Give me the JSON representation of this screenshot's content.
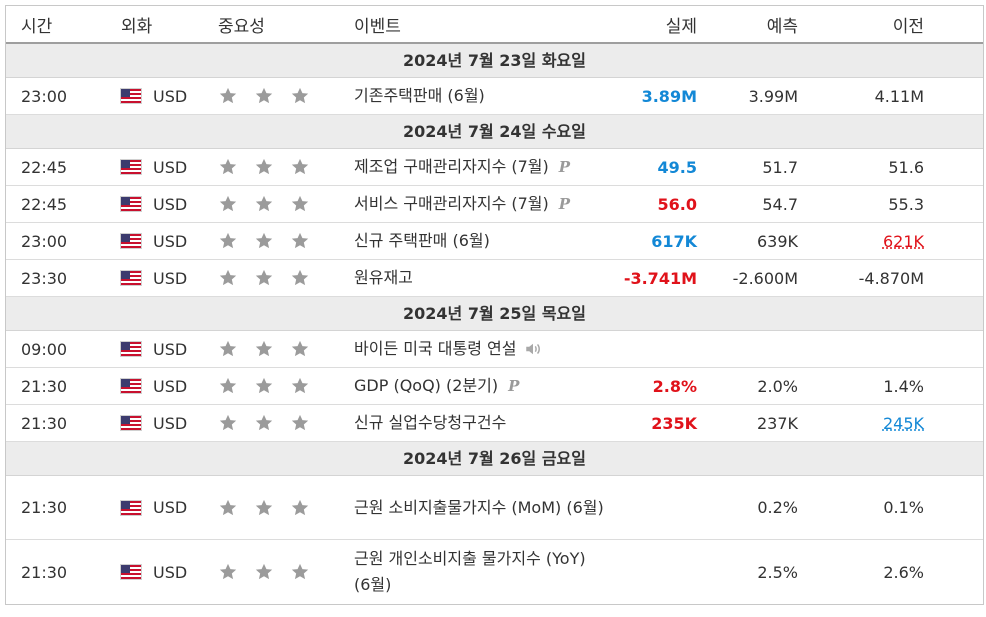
{
  "headers": {
    "time": "시간",
    "currency": "외화",
    "importance": "중요성",
    "event": "이벤트",
    "actual": "실제",
    "forecast": "예측",
    "previous": "이전"
  },
  "colors": {
    "better": "#1388d6",
    "worse": "#e0121a",
    "star": "#9b9b9b",
    "date_row_bg": "#ececec"
  },
  "days": [
    {
      "date": "2024년 7월 23일 화요일",
      "events": [
        {
          "time": "23:00",
          "currency": "USD",
          "importance": 3,
          "event": "기존주택판매 (6월)",
          "badge": "",
          "actual": "3.89M",
          "actual_class": "blue",
          "forecast": "3.99M",
          "previous": "4.11M",
          "previous_class": ""
        }
      ]
    },
    {
      "date": "2024년 7월 24일 수요일",
      "events": [
        {
          "time": "22:45",
          "currency": "USD",
          "importance": 3,
          "event": "제조업 구매관리자지수 (7월)",
          "badge": "P",
          "actual": "49.5",
          "actual_class": "blue",
          "forecast": "51.7",
          "previous": "51.6",
          "previous_class": ""
        },
        {
          "time": "22:45",
          "currency": "USD",
          "importance": 3,
          "event": "서비스 구매관리자지수 (7월)",
          "badge": "P",
          "actual": "56.0",
          "actual_class": "red",
          "forecast": "54.7",
          "previous": "55.3",
          "previous_class": ""
        },
        {
          "time": "23:00",
          "currency": "USD",
          "importance": 3,
          "event": "신규 주택판매 (6월)",
          "badge": "",
          "actual": "617K",
          "actual_class": "blue",
          "forecast": "639K",
          "previous": "621K",
          "previous_class": "prev-red"
        },
        {
          "time": "23:30",
          "currency": "USD",
          "importance": 3,
          "event": "원유재고",
          "badge": "",
          "actual": "-3.741M",
          "actual_class": "red",
          "forecast": "-2.600M",
          "previous": "-4.870M",
          "previous_class": ""
        }
      ]
    },
    {
      "date": "2024년 7월 25일 목요일",
      "events": [
        {
          "time": "09:00",
          "currency": "USD",
          "importance": 3,
          "event": "바이든 미국 대통령 연설",
          "badge": "speaker-icon",
          "actual": "",
          "actual_class": "",
          "forecast": "",
          "previous": "",
          "previous_class": ""
        },
        {
          "time": "21:30",
          "currency": "USD",
          "importance": 3,
          "event": "GDP (QoQ) (2분기)",
          "badge": "P",
          "actual": "2.8%",
          "actual_class": "red",
          "forecast": "2.0%",
          "previous": "1.4%",
          "previous_class": ""
        },
        {
          "time": "21:30",
          "currency": "USD",
          "importance": 3,
          "event": "신규 실업수당청구건수",
          "badge": "",
          "actual": "235K",
          "actual_class": "red",
          "forecast": "237K",
          "previous": "245K",
          "previous_class": "prev-blue"
        }
      ]
    },
    {
      "date": "2024년 7월 26일 금요일",
      "events": [
        {
          "time": "21:30",
          "currency": "USD",
          "importance": 3,
          "event": "근원 소비지출물가지수 (MoM) (6월)",
          "badge": "",
          "actual": "",
          "actual_class": "",
          "forecast": "0.2%",
          "previous": "0.1%",
          "previous_class": "",
          "tall": true
        },
        {
          "time": "21:30",
          "currency": "USD",
          "importance": 3,
          "event": "근원 개인소비지출 물가지수 (YoY) (6월)",
          "badge": "",
          "actual": "",
          "actual_class": "",
          "forecast": "2.5%",
          "previous": "2.6%",
          "previous_class": "",
          "tall": true
        }
      ]
    }
  ]
}
